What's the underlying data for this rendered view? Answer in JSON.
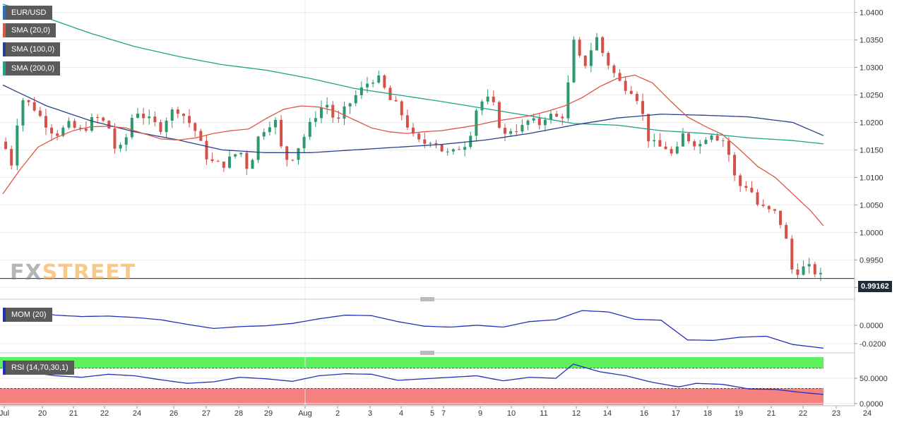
{
  "chart_data": [
    {
      "type": "candlestick",
      "pane": "price",
      "symbol": "EUR/USD",
      "indicators": [
        {
          "name": "SMA (20,0)",
          "color": "#e05546"
        },
        {
          "name": "SMA (100,0)",
          "color": "#2a3f8f"
        },
        {
          "name": "SMA (200,0)",
          "color": "#1fa38a"
        }
      ],
      "last_price": "0.99162",
      "y_ticks": [
        "1.0400",
        "1.0350",
        "1.0300",
        "1.0250",
        "1.0200",
        "1.0150",
        "1.0100",
        "1.0050",
        "1.0000",
        "0.9950",
        "0.9900"
      ],
      "ylim": [
        0.9885,
        1.042
      ],
      "x_ticks": [
        "Jul",
        "20",
        "21",
        "22",
        "24",
        "26",
        "27",
        "28",
        "29",
        "Aug",
        "2",
        "3",
        "4",
        "5",
        "7",
        "9",
        "10",
        "11",
        "12",
        "14",
        "16",
        "17",
        "18",
        "19",
        "21",
        "22",
        "23",
        "24"
      ],
      "up_color": "#2d9a6c",
      "down_color": "#d45049",
      "candle_count": 143,
      "price_path": [
        [
          0,
          1.0165
        ],
        [
          2,
          1.0125
        ],
        [
          4,
          1.0245
        ],
        [
          7,
          1.0228
        ],
        [
          9,
          1.0205
        ],
        [
          12,
          1.0178
        ],
        [
          15,
          1.0195
        ],
        [
          18,
          1.0183
        ],
        [
          21,
          1.021
        ],
        [
          24,
          1.0195
        ],
        [
          26,
          1.014
        ],
        [
          28,
          1.017
        ],
        [
          30,
          1.0225
        ],
        [
          33,
          1.0205
        ],
        [
          36,
          1.019
        ],
        [
          38,
          1.0218
        ],
        [
          40,
          1.0224
        ],
        [
          42,
          1.0205
        ],
        [
          44,
          1.0183
        ],
        [
          46,
          1.0142
        ],
        [
          48,
          1.0125
        ],
        [
          50,
          1.0122
        ],
        [
          52,
          1.0135
        ],
        [
          54,
          1.015
        ],
        [
          56,
          1.0112
        ],
        [
          58,
          1.017
        ],
        [
          60,
          1.0195
        ],
        [
          62,
          1.0205
        ],
        [
          64,
          1.0132
        ],
        [
          66,
          1.0138
        ],
        [
          68,
          1.0165
        ],
        [
          70,
          1.0195
        ],
        [
          72,
          1.0225
        ],
        [
          74,
          1.0233
        ],
        [
          76,
          1.0195
        ],
        [
          78,
          1.0224
        ],
        [
          80,
          1.0245
        ],
        [
          82,
          1.0262
        ],
        [
          84,
          1.028
        ],
        [
          86,
          1.0277
        ],
        [
          88,
          1.0242
        ],
        [
          90,
          1.0228
        ],
        [
          92,
          1.0198
        ],
        [
          94,
          1.0165
        ],
        [
          96,
          1.0162
        ],
        [
          98,
          1.0172
        ],
        [
          100,
          1.015
        ],
        [
          102,
          1.014
        ],
        [
          104,
          1.0155
        ],
        [
          106,
          1.0165
        ],
        [
          108,
          1.0228
        ],
        [
          110,
          1.0245
        ],
        [
          112,
          1.0228
        ],
        [
          114,
          1.0172
        ],
        [
          116,
          1.019
        ],
        [
          118,
          1.0188
        ],
        [
          120,
          1.0205
        ],
        [
          122,
          1.0195
        ],
        [
          124,
          1.0215
        ],
        [
          126,
          1.0208
        ],
        [
          128,
          1.0215
        ],
        [
          130,
          1.0348
        ],
        [
          131,
          1.0318
        ],
        [
          133,
          1.0305
        ],
        [
          135,
          1.036
        ],
        [
          137,
          1.032
        ],
        [
          139,
          1.0292
        ],
        [
          141,
          1.0268
        ],
        [
          143,
          1.0262
        ],
        [
          145,
          1.024
        ],
        [
          147,
          1.0172
        ],
        [
          149,
          1.0155
        ],
        [
          151,
          1.0155
        ],
        [
          153,
          1.0135
        ],
        [
          155,
          1.0178
        ],
        [
          157,
          1.0165
        ],
        [
          159,
          1.016
        ],
        [
          161,
          1.0185
        ],
        [
          163,
          1.0172
        ],
        [
          165,
          1.0165
        ],
        [
          166,
          1.011
        ],
        [
          168,
          1.0085
        ],
        [
          170,
          1.0085
        ],
        [
          172,
          1.005
        ],
        [
          174,
          1.004
        ],
        [
          176,
          1.0035
        ],
        [
          178,
          1.0005
        ],
        [
          180,
          0.9925
        ],
        [
          182,
          0.9935
        ],
        [
          184,
          0.9935
        ],
        [
          186,
          0.9922
        ],
        [
          187,
          0.9916
        ]
      ],
      "sma20_path": [
        [
          0,
          1.007
        ],
        [
          4,
          1.0115
        ],
        [
          8,
          1.0155
        ],
        [
          12,
          1.0172
        ],
        [
          16,
          1.0185
        ],
        [
          20,
          1.0192
        ],
        [
          24,
          1.0193
        ],
        [
          28,
          1.019
        ],
        [
          32,
          1.018
        ],
        [
          36,
          1.017
        ],
        [
          40,
          1.0168
        ],
        [
          44,
          1.0172
        ],
        [
          48,
          1.018
        ],
        [
          52,
          1.0185
        ],
        [
          56,
          1.0188
        ],
        [
          60,
          1.0207
        ],
        [
          64,
          1.0224
        ],
        [
          68,
          1.023
        ],
        [
          72,
          1.0228
        ],
        [
          76,
          1.022
        ],
        [
          80,
          1.0205
        ],
        [
          84,
          1.019
        ],
        [
          88,
          1.0183
        ],
        [
          92,
          1.018
        ],
        [
          96,
          1.0183
        ],
        [
          100,
          1.0185
        ],
        [
          104,
          1.019
        ],
        [
          108,
          1.0195
        ],
        [
          112,
          1.0202
        ],
        [
          116,
          1.0207
        ],
        [
          120,
          1.0212
        ],
        [
          124,
          1.022
        ],
        [
          128,
          1.023
        ],
        [
          132,
          1.0245
        ],
        [
          136,
          1.0265
        ],
        [
          140,
          1.028
        ],
        [
          144,
          1.0286
        ],
        [
          148,
          1.0272
        ],
        [
          152,
          1.024
        ],
        [
          156,
          1.021
        ],
        [
          160,
          1.0193
        ],
        [
          164,
          1.0178
        ],
        [
          168,
          1.015
        ],
        [
          172,
          1.012
        ],
        [
          176,
          1.01
        ],
        [
          180,
          1.007
        ],
        [
          184,
          1.004
        ],
        [
          187,
          1.0012
        ]
      ],
      "sma100_path": [
        [
          0,
          1.0268
        ],
        [
          10,
          1.023
        ],
        [
          20,
          1.0203
        ],
        [
          30,
          1.0183
        ],
        [
          40,
          1.0168
        ],
        [
          50,
          1.015
        ],
        [
          60,
          1.0145
        ],
        [
          70,
          1.0145
        ],
        [
          80,
          1.015
        ],
        [
          90,
          1.0155
        ],
        [
          100,
          1.016
        ],
        [
          110,
          1.0168
        ],
        [
          120,
          1.018
        ],
        [
          130,
          1.0195
        ],
        [
          140,
          1.0208
        ],
        [
          150,
          1.0215
        ],
        [
          160,
          1.0213
        ],
        [
          170,
          1.021
        ],
        [
          180,
          1.02
        ],
        [
          187,
          1.0176
        ]
      ],
      "sma200_path": [
        [
          0,
          1.0415
        ],
        [
          10,
          1.039
        ],
        [
          20,
          1.0362
        ],
        [
          30,
          1.0338
        ],
        [
          40,
          1.032
        ],
        [
          50,
          1.0305
        ],
        [
          60,
          1.0295
        ],
        [
          70,
          1.028
        ],
        [
          80,
          1.0262
        ],
        [
          90,
          1.025
        ],
        [
          100,
          1.0238
        ],
        [
          110,
          1.0225
        ],
        [
          120,
          1.0212
        ],
        [
          130,
          1.0198
        ],
        [
          140,
          1.0195
        ],
        [
          150,
          1.0185
        ],
        [
          160,
          1.018
        ],
        [
          170,
          1.0172
        ],
        [
          180,
          1.0167
        ],
        [
          187,
          1.0161
        ]
      ]
    },
    {
      "type": "line",
      "pane": "momentum",
      "label": "MOM (20)",
      "color": "#2431b7",
      "y_ticks": [
        "0.0000",
        "-0.0200"
      ],
      "ylim": [
        -0.027,
        0.023
      ],
      "series_path": [
        [
          0,
          0.015
        ],
        [
          6,
          0.016
        ],
        [
          12,
          0.011
        ],
        [
          18,
          0.0095
        ],
        [
          24,
          0.01
        ],
        [
          30,
          0.0085
        ],
        [
          36,
          0.006
        ],
        [
          42,
          0.001
        ],
        [
          48,
          -0.0035
        ],
        [
          54,
          -0.0015
        ],
        [
          60,
          -0.0005
        ],
        [
          66,
          0.002
        ],
        [
          72,
          0.007
        ],
        [
          78,
          0.011
        ],
        [
          84,
          0.0105
        ],
        [
          90,
          0.004
        ],
        [
          96,
          -0.001
        ],
        [
          102,
          -0.002
        ],
        [
          108,
          0.0
        ],
        [
          114,
          -0.002
        ],
        [
          120,
          0.004
        ],
        [
          126,
          0.006
        ],
        [
          132,
          0.016
        ],
        [
          138,
          0.0145
        ],
        [
          144,
          0.0065
        ],
        [
          150,
          0.0055
        ],
        [
          156,
          -0.016
        ],
        [
          162,
          -0.0165
        ],
        [
          168,
          -0.013
        ],
        [
          174,
          -0.012
        ],
        [
          180,
          -0.021
        ],
        [
          187,
          -0.025
        ]
      ]
    },
    {
      "type": "line",
      "pane": "rsi",
      "label": "RSI (14,70,30,1)",
      "color": "#2431b7",
      "overbought_color": "#5ff05f",
      "oversold_color": "#f58080",
      "y_ticks": [
        "50.0000",
        "0.0000"
      ],
      "ylim": [
        -3,
        92
      ],
      "overbought": 70,
      "oversold": 30,
      "series_path": [
        [
          0,
          58
        ],
        [
          6,
          62
        ],
        [
          12,
          55
        ],
        [
          18,
          52
        ],
        [
          24,
          58
        ],
        [
          30,
          55
        ],
        [
          36,
          47
        ],
        [
          42,
          40
        ],
        [
          48,
          43
        ],
        [
          54,
          52
        ],
        [
          60,
          49
        ],
        [
          66,
          44
        ],
        [
          72,
          55
        ],
        [
          78,
          59
        ],
        [
          84,
          58
        ],
        [
          90,
          46
        ],
        [
          96,
          49
        ],
        [
          102,
          52
        ],
        [
          108,
          55
        ],
        [
          114,
          45
        ],
        [
          120,
          52
        ],
        [
          126,
          50
        ],
        [
          130,
          78
        ],
        [
          136,
          63
        ],
        [
          142,
          55
        ],
        [
          148,
          42
        ],
        [
          154,
          33
        ],
        [
          158,
          40
        ],
        [
          164,
          38
        ],
        [
          170,
          29
        ],
        [
          176,
          28
        ],
        [
          182,
          22
        ],
        [
          187,
          18
        ]
      ]
    }
  ],
  "watermark": {
    "part1": "FX",
    "part2": "STREET"
  }
}
